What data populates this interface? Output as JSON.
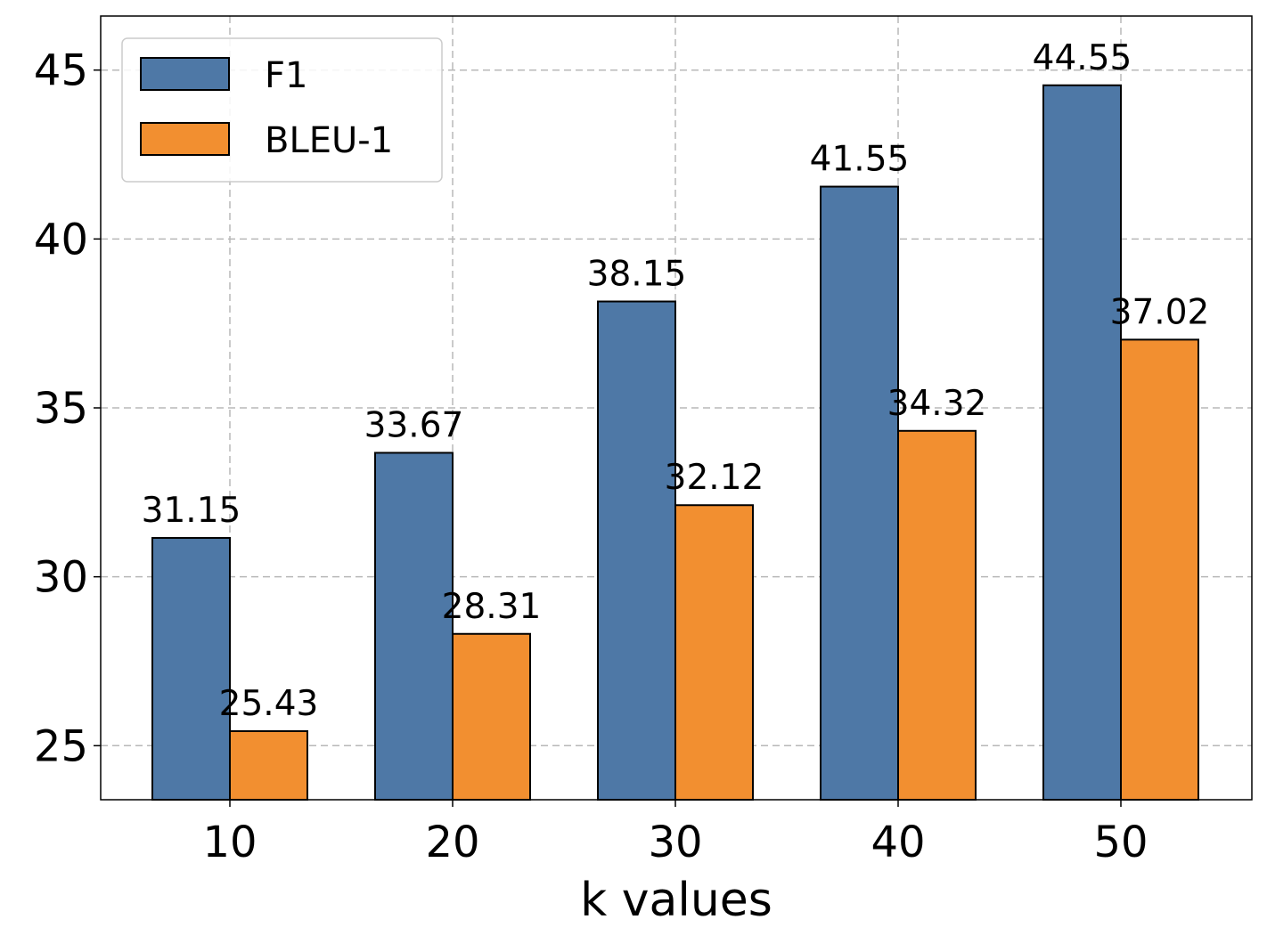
{
  "chart_data": {
    "type": "bar",
    "title": "",
    "xlabel": "k values",
    "ylabel": "",
    "categories": [
      "10",
      "20",
      "30",
      "40",
      "50"
    ],
    "series": [
      {
        "name": "F1",
        "color": "#4e78a6",
        "values": [
          31.15,
          33.67,
          38.15,
          41.55,
          44.55
        ]
      },
      {
        "name": "BLEU-1",
        "color": "#f28f30",
        "values": [
          25.43,
          28.31,
          32.12,
          34.32,
          37.02
        ]
      }
    ],
    "data_labels": [
      [
        "31.15",
        "33.67",
        "38.15",
        "41.55",
        "44.55"
      ],
      [
        "25.43",
        "28.31",
        "32.12",
        "34.32",
        "37.02"
      ]
    ],
    "ylim": [
      23.4,
      46.6
    ],
    "yticks": [
      "25",
      "30",
      "35",
      "40",
      "45"
    ],
    "grid": true,
    "legend_position": "top-left"
  }
}
